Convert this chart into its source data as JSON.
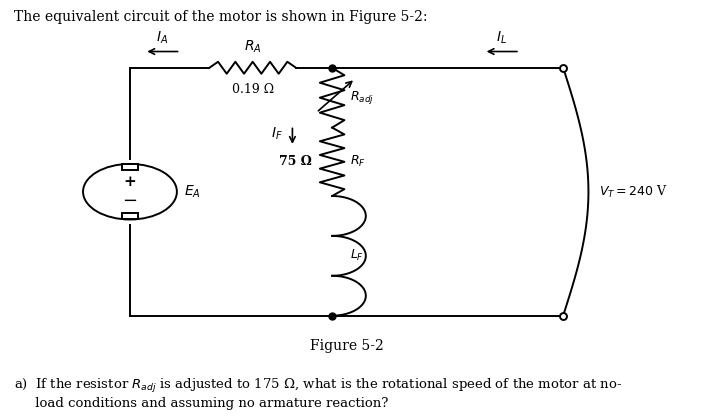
{
  "title_text": "The equivalent circuit of the motor is shown in Figure 5-2:",
  "figure_label": "Figure 5-2",
  "bg_color": "#ffffff",
  "line_color": "#000000",
  "circuit": {
    "RA_label": "$R_A$",
    "RA_value": "0.19 Ω",
    "IA_label": "$I_A$",
    "IL_label": "$I_L$",
    "Radj_label": "$R_{adj}$",
    "RF_label": "$R_F$",
    "RF_value": "75 Ω",
    "LF_label": "$L_F$",
    "IF_label": "$I_F$",
    "EA_label": "$E_A$",
    "VT_label": "$V_T = 240$ V"
  },
  "question": "a)  If the resistor $R_{adj}$ is adjusted to 175 Ω, what is the rotational speed of the motor at no-\n     load conditions and assuming no armature reaction?"
}
